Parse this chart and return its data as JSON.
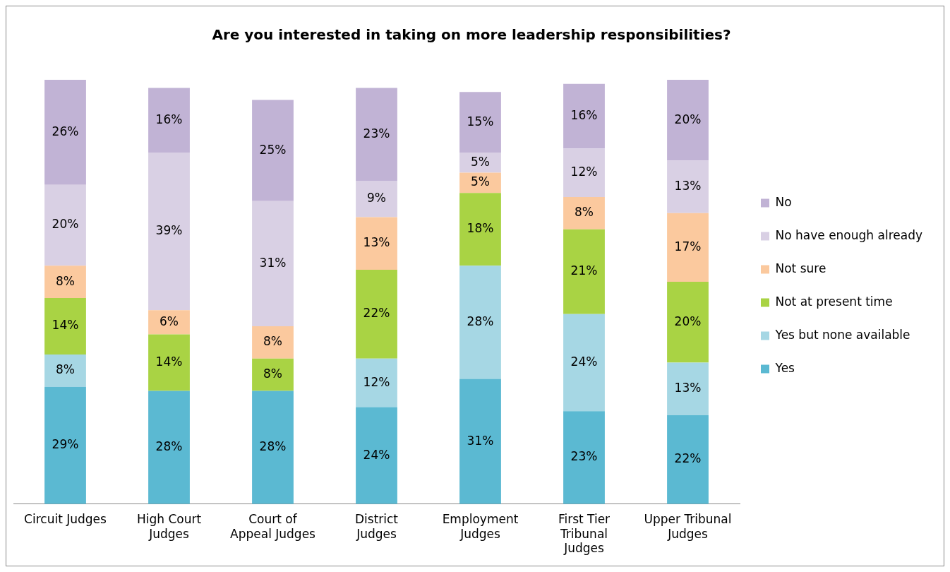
{
  "chart_data": {
    "type": "bar",
    "title": "Are you interested in taking on more leadership responsibilities?",
    "stacked": true,
    "legend": "right",
    "grid": false,
    "categories": [
      "Circuit Judges",
      "High Court Judges",
      "Court of Appeal Judges",
      "District Judges",
      "Employment Judges",
      "First Tier Tribunal Judges",
      "Upper Tribunal Judges"
    ],
    "series": [
      {
        "name": "Yes",
        "color": "#5bb9d2",
        "values": [
          29,
          28,
          28,
          24,
          31,
          23,
          22
        ],
        "value_labels": [
          "29%",
          "28%",
          "28%",
          "24%",
          "31%",
          "23%",
          "22%"
        ]
      },
      {
        "name": "Yes but none available",
        "color": "#a6d7e4",
        "values": [
          8,
          null,
          null,
          12,
          28,
          24,
          13
        ],
        "value_labels": [
          "8%",
          null,
          null,
          "12%",
          "28%",
          "24%",
          "13%"
        ]
      },
      {
        "name": "Not at present time",
        "color": "#a9d344",
        "values": [
          14,
          14,
          8,
          22,
          18,
          21,
          20
        ],
        "value_labels": [
          "14%",
          "14%",
          "8%",
          "22%",
          "18%",
          "21%",
          "20%"
        ]
      },
      {
        "name": "Not sure",
        "color": "#fbc99e",
        "values": [
          8,
          6,
          8,
          13,
          5,
          8,
          17
        ],
        "value_labels": [
          "8%",
          "6%",
          "8%",
          "13%",
          "5%",
          "8%",
          "17%"
        ]
      },
      {
        "name": "No have enough already",
        "color": "#d9d0e4",
        "values": [
          20,
          39,
          31,
          9,
          5,
          12,
          13
        ],
        "value_labels": [
          "20%",
          "39%",
          "31%",
          "9%",
          "5%",
          "12%",
          "13%"
        ]
      },
      {
        "name": "No",
        "color": "#c1b3d5",
        "values": [
          26,
          16,
          25,
          23,
          15,
          16,
          20
        ],
        "value_labels": [
          "26%",
          "16%",
          "25%",
          "23%",
          "15%",
          "16%",
          "20%"
        ]
      }
    ]
  }
}
